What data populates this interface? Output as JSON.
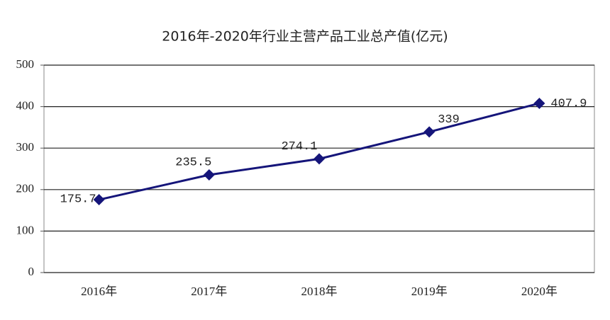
{
  "chart_data": {
    "type": "line",
    "title": "2016年-2020年行业主营产品工业总产值(亿元)",
    "categories": [
      "2016年",
      "2017年",
      "2018年",
      "2019年",
      "2020年"
    ],
    "values": [
      175.7,
      235.5,
      274.1,
      339,
      407.9
    ],
    "color": "#15157a",
    "ylim": [
      0,
      500
    ],
    "yticks": [
      0,
      100,
      200,
      300,
      400,
      500
    ],
    "grid": true
  }
}
